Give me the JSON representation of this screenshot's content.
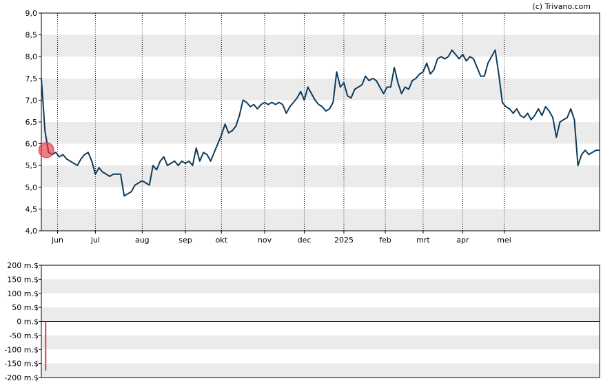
{
  "credit": "(c) Trivano.com",
  "chart_data": [
    {
      "type": "line",
      "ylim": [
        4.0,
        9.0
      ],
      "yticks": [
        "9,0",
        "8,5",
        "8,0",
        "7,5",
        "7,0",
        "6,5",
        "6,0",
        "5,5",
        "5,0",
        "4,5",
        "4,0"
      ],
      "grid": true,
      "xticks": [
        "jun",
        "jul",
        "aug",
        "sep",
        "okt",
        "nov",
        "dec",
        "2025",
        "feb",
        "mrt",
        "apr",
        "mei"
      ],
      "series": [
        {
          "color": "#0b3a5c",
          "points": [
            [
              0,
              7.5
            ],
            [
              1,
              6.3
            ],
            [
              2,
              5.8
            ],
            [
              3,
              5.75
            ],
            [
              4,
              5.8
            ],
            [
              5,
              5.7
            ],
            [
              6,
              5.75
            ],
            [
              7,
              5.65
            ],
            [
              8,
              5.6
            ],
            [
              9,
              5.55
            ],
            [
              10,
              5.5
            ],
            [
              11,
              5.65
            ],
            [
              12,
              5.75
            ],
            [
              13,
              5.8
            ],
            [
              14,
              5.6
            ],
            [
              15,
              5.3
            ],
            [
              16,
              5.45
            ],
            [
              17,
              5.35
            ],
            [
              18,
              5.3
            ],
            [
              19,
              5.25
            ],
            [
              20,
              5.3
            ],
            [
              21,
              5.3
            ],
            [
              22,
              5.3
            ],
            [
              23,
              4.8
            ],
            [
              24,
              4.85
            ],
            [
              25,
              4.9
            ],
            [
              26,
              5.05
            ],
            [
              27,
              5.1
            ],
            [
              28,
              5.15
            ],
            [
              29,
              5.1
            ],
            [
              30,
              5.05
            ],
            [
              31,
              5.5
            ],
            [
              32,
              5.4
            ],
            [
              33,
              5.6
            ],
            [
              34,
              5.7
            ],
            [
              35,
              5.5
            ],
            [
              36,
              5.55
            ],
            [
              37,
              5.6
            ],
            [
              38,
              5.5
            ],
            [
              39,
              5.6
            ],
            [
              40,
              5.55
            ],
            [
              41,
              5.6
            ],
            [
              42,
              5.5
            ],
            [
              43,
              5.9
            ],
            [
              44,
              5.6
            ],
            [
              45,
              5.8
            ],
            [
              46,
              5.75
            ],
            [
              47,
              5.6
            ],
            [
              48,
              5.8
            ],
            [
              49,
              6.0
            ],
            [
              50,
              6.2
            ],
            [
              51,
              6.45
            ],
            [
              52,
              6.25
            ],
            [
              53,
              6.3
            ],
            [
              54,
              6.4
            ],
            [
              55,
              6.65
            ],
            [
              56,
              7.0
            ],
            [
              57,
              6.95
            ],
            [
              58,
              6.85
            ],
            [
              59,
              6.9
            ],
            [
              60,
              6.8
            ],
            [
              61,
              6.9
            ],
            [
              62,
              6.95
            ],
            [
              63,
              6.9
            ],
            [
              64,
              6.95
            ],
            [
              65,
              6.9
            ],
            [
              66,
              6.95
            ],
            [
              67,
              6.9
            ],
            [
              68,
              6.7
            ],
            [
              69,
              6.85
            ],
            [
              70,
              6.95
            ],
            [
              71,
              7.05
            ],
            [
              72,
              7.2
            ],
            [
              73,
              7.0
            ],
            [
              74,
              7.3
            ],
            [
              75,
              7.15
            ],
            [
              76,
              7.0
            ],
            [
              77,
              6.9
            ],
            [
              78,
              6.85
            ],
            [
              79,
              6.75
            ],
            [
              80,
              6.8
            ],
            [
              81,
              6.95
            ],
            [
              82,
              7.65
            ],
            [
              83,
              7.3
            ],
            [
              84,
              7.4
            ],
            [
              85,
              7.1
            ],
            [
              86,
              7.05
            ],
            [
              87,
              7.25
            ],
            [
              88,
              7.3
            ],
            [
              89,
              7.35
            ],
            [
              90,
              7.55
            ],
            [
              91,
              7.45
            ],
            [
              92,
              7.5
            ],
            [
              93,
              7.45
            ],
            [
              94,
              7.3
            ],
            [
              95,
              7.15
            ],
            [
              96,
              7.3
            ],
            [
              97,
              7.3
            ],
            [
              98,
              7.75
            ],
            [
              99,
              7.4
            ],
            [
              100,
              7.15
            ],
            [
              101,
              7.3
            ],
            [
              102,
              7.25
            ],
            [
              103,
              7.45
            ],
            [
              104,
              7.5
            ],
            [
              105,
              7.6
            ],
            [
              106,
              7.65
            ],
            [
              107,
              7.85
            ],
            [
              108,
              7.6
            ],
            [
              109,
              7.7
            ],
            [
              110,
              7.95
            ],
            [
              111,
              8.0
            ],
            [
              112,
              7.95
            ],
            [
              113,
              8.0
            ],
            [
              114,
              8.15
            ],
            [
              115,
              8.05
            ],
            [
              116,
              7.95
            ],
            [
              117,
              8.05
            ],
            [
              118,
              7.9
            ],
            [
              119,
              8.0
            ],
            [
              120,
              7.95
            ],
            [
              121,
              7.75
            ],
            [
              122,
              7.55
            ],
            [
              123,
              7.55
            ],
            [
              124,
              7.85
            ],
            [
              125,
              8.0
            ],
            [
              126,
              8.15
            ],
            [
              127,
              7.6
            ],
            [
              128,
              6.95
            ],
            [
              129,
              6.85
            ],
            [
              130,
              6.8
            ],
            [
              131,
              6.7
            ],
            [
              132,
              6.8
            ],
            [
              133,
              6.65
            ],
            [
              134,
              6.6
            ],
            [
              135,
              6.7
            ],
            [
              136,
              6.55
            ],
            [
              137,
              6.65
            ],
            [
              138,
              6.8
            ],
            [
              139,
              6.65
            ],
            [
              140,
              6.85
            ],
            [
              141,
              6.75
            ],
            [
              142,
              6.6
            ],
            [
              143,
              6.15
            ],
            [
              144,
              6.5
            ],
            [
              145,
              6.55
            ],
            [
              146,
              6.6
            ],
            [
              147,
              6.8
            ],
            [
              148,
              6.55
            ],
            [
              149,
              5.5
            ],
            [
              150,
              5.75
            ],
            [
              151,
              5.85
            ],
            [
              152,
              5.75
            ],
            [
              153,
              5.8
            ],
            [
              154,
              5.85
            ],
            [
              155,
              5.85
            ]
          ]
        }
      ],
      "marker": {
        "x": 1,
        "y": 5.9,
        "color": "#e8343f"
      }
    },
    {
      "type": "bar",
      "ylim": [
        -200,
        200
      ],
      "yticks": [
        "200 m.$",
        "150 m.$",
        "100 m.$",
        "50 m.$",
        "0 m.$",
        "-50 m.$",
        "-100 m.$",
        "-150 m.$",
        "-200 m.$"
      ],
      "grid": true,
      "series": [
        {
          "color": "#e8343f",
          "points": [
            [
              1,
              -175
            ]
          ]
        }
      ]
    }
  ]
}
